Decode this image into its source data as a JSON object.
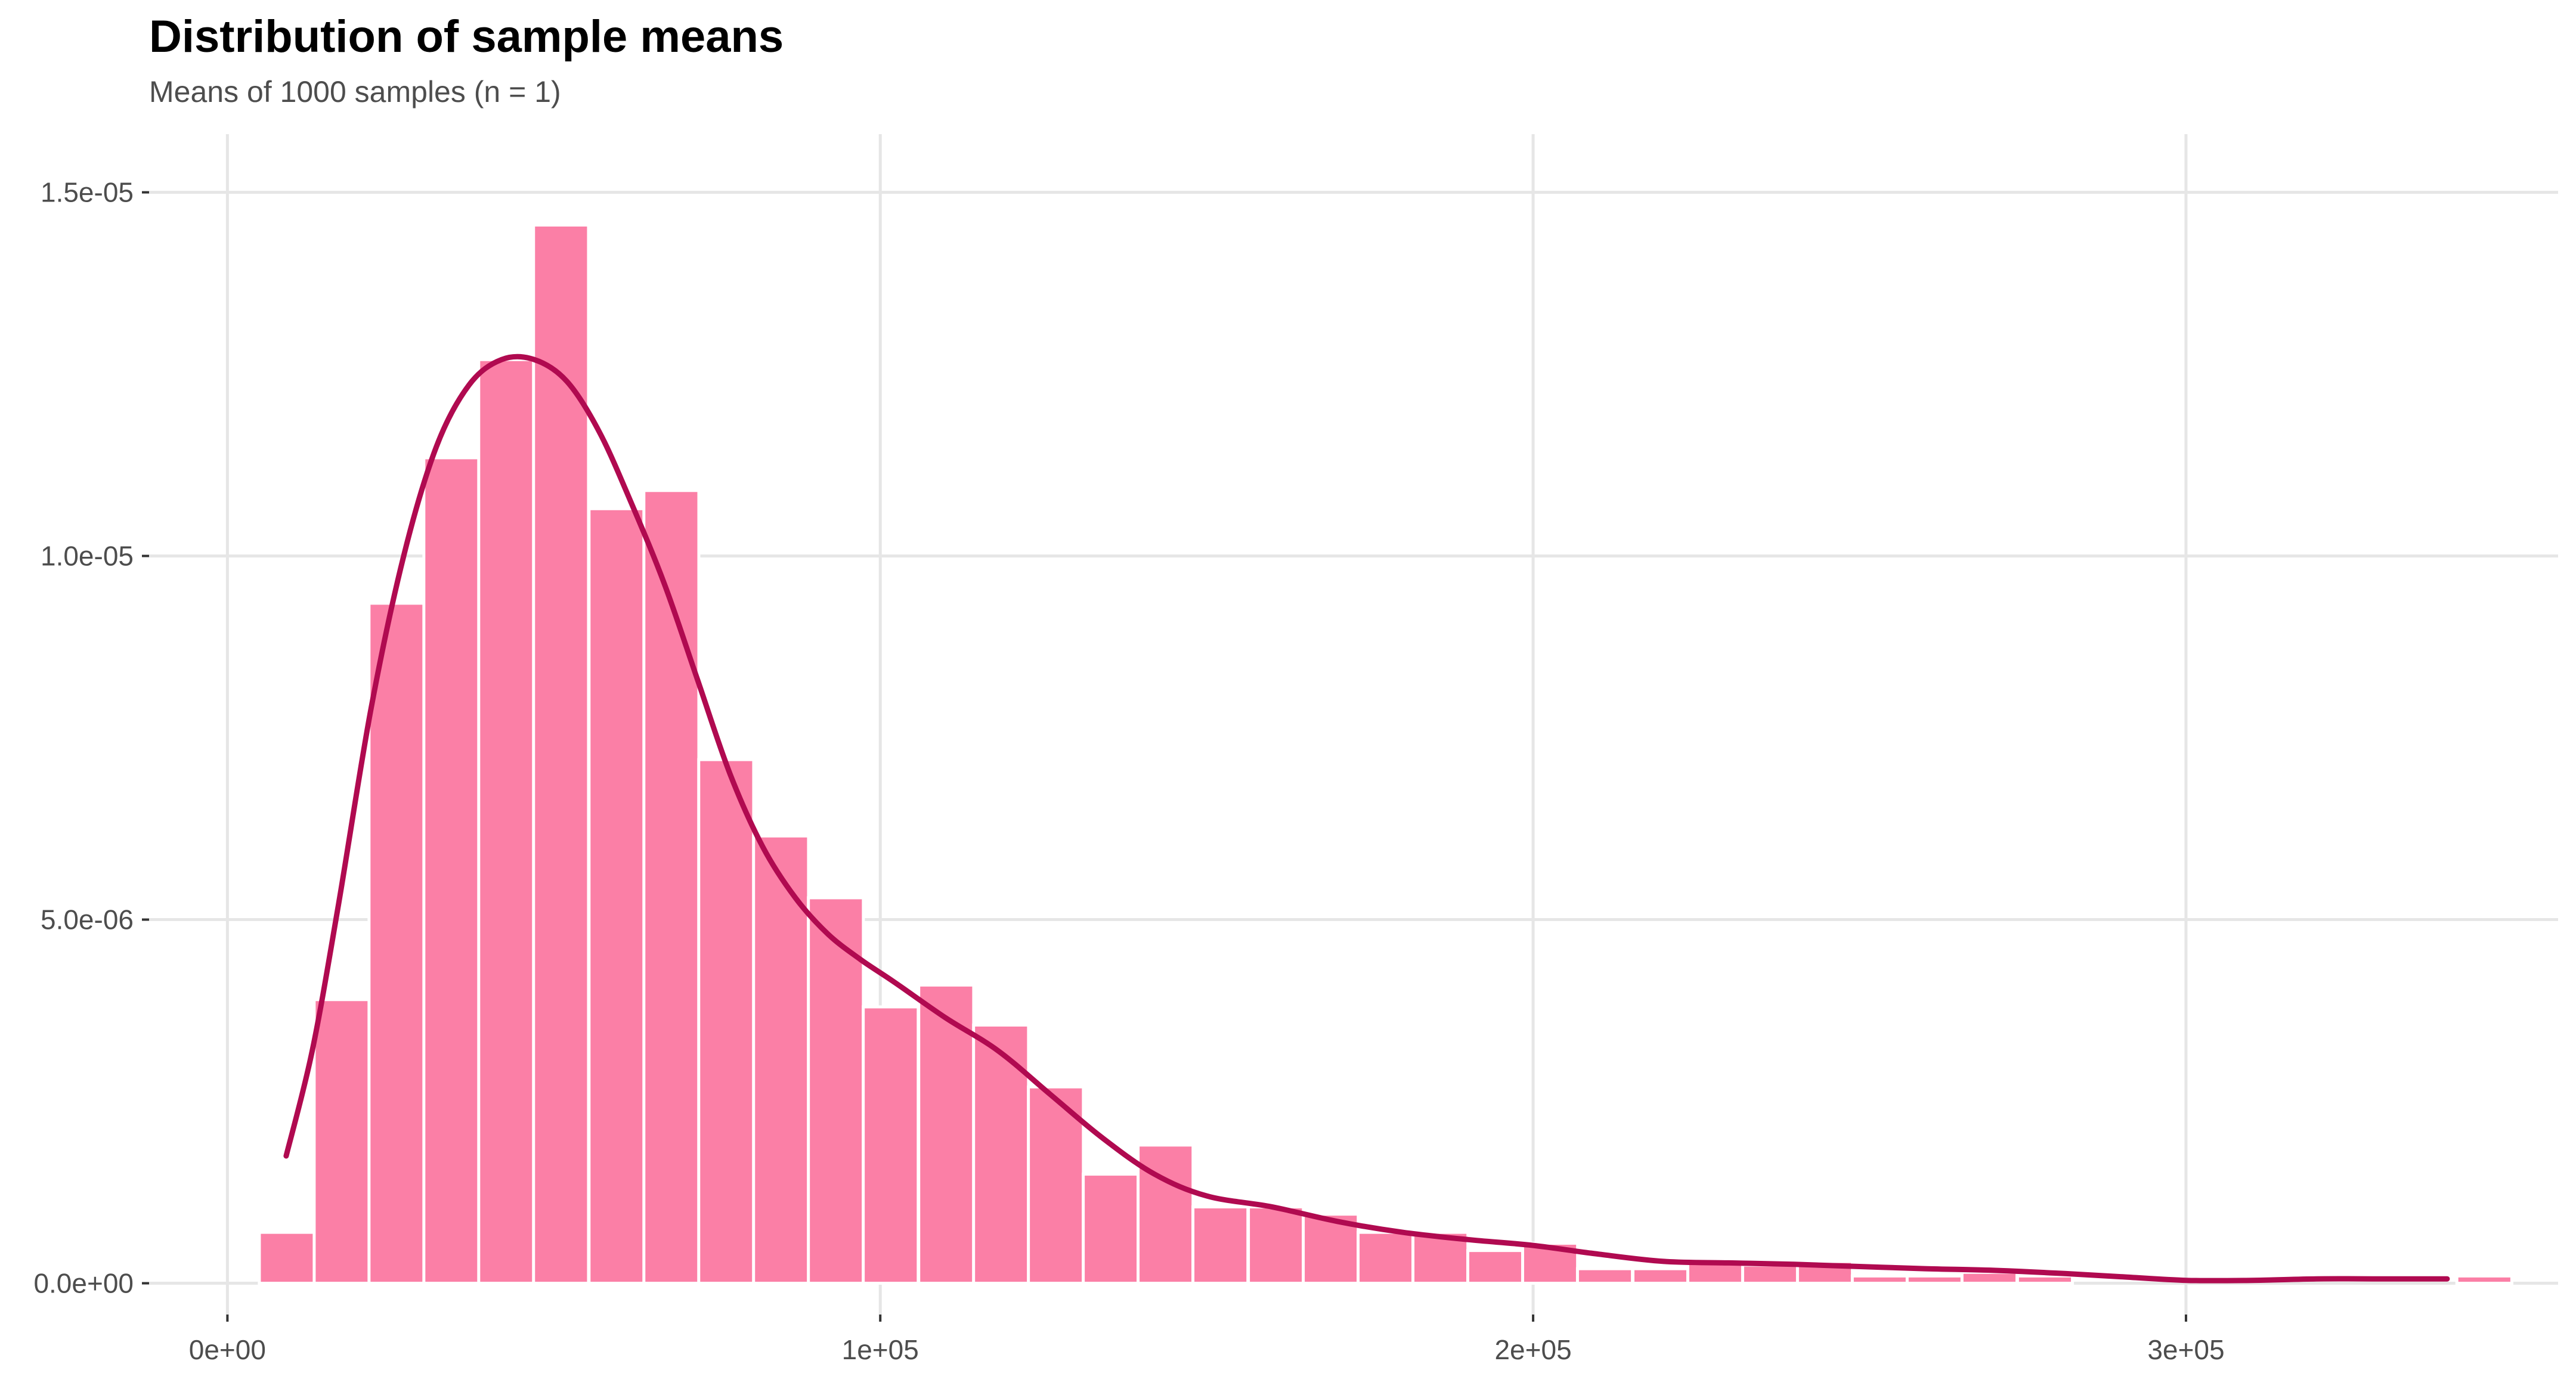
{
  "chart_data": {
    "type": "bar",
    "title": "Distribution of sample means",
    "subtitle": "Means of 1000 samples (n = 1)",
    "xlabel": "",
    "ylabel": "",
    "xlim": [
      -12000,
      357000
    ],
    "ylim": [
      -4.3e-07,
      1.58e-05
    ],
    "grid": true,
    "x_ticks": [
      {
        "value": 0,
        "label": "0e+00"
      },
      {
        "value": 100000,
        "label": "1e+05"
      },
      {
        "value": 200000,
        "label": "2e+05"
      },
      {
        "value": 300000,
        "label": "3e+05"
      }
    ],
    "y_ticks": [
      {
        "value": 0,
        "label": "0.0e+00"
      },
      {
        "value": 5e-06,
        "label": "5.0e-06"
      },
      {
        "value": 1e-05,
        "label": "1.0e-05"
      },
      {
        "value": 1.5e-05,
        "label": "1.5e-05"
      }
    ],
    "bin_width": 8420,
    "bin_centers": [
      9100,
      17500,
      25900,
      34300,
      42700,
      51100,
      59600,
      68000,
      76400,
      84800,
      93200,
      101600,
      110100,
      118500,
      126900,
      135300,
      143700,
      152100,
      160600,
      169000,
      177400,
      185800,
      194200,
      202600,
      211000,
      219500,
      227900,
      236300,
      244700,
      253100,
      261500,
      269900,
      278400,
      286800,
      295200,
      303600,
      312000,
      320400,
      328900,
      337300,
      345700
    ],
    "values": [
      7e-07,
      3.9e-06,
      9.35e-06,
      1.135e-05,
      1.27e-05,
      1.455e-05,
      1.065e-05,
      1.09e-05,
      7.2e-06,
      6.15e-06,
      5.3e-06,
      3.8e-06,
      4.1e-06,
      3.55e-06,
      2.7e-06,
      1.5e-06,
      1.9e-06,
      1.05e-06,
      1.05e-06,
      9.5e-07,
      7e-07,
      7e-07,
      4.5e-07,
      5.5e-07,
      2e-07,
      2e-07,
      3e-07,
      2.5e-07,
      3e-07,
      1e-07,
      1e-07,
      1.5e-07,
      1e-07,
      0,
      0,
      0,
      0,
      0,
      0,
      0,
      1e-07
    ],
    "bar_color": "#fb7fa6",
    "density": {
      "x": [
        9000,
        13000,
        17000,
        22000,
        27000,
        32000,
        37000,
        42000,
        47000,
        52000,
        57000,
        62000,
        67000,
        72000,
        77000,
        82000,
        87000,
        92000,
        97000,
        102000,
        110000,
        118000,
        126000,
        134000,
        142000,
        150000,
        160000,
        170000,
        180000,
        190000,
        200000,
        210000,
        220000,
        230000,
        240000,
        250000,
        260000,
        270000,
        280000,
        290000,
        300000,
        310000,
        320000,
        330000,
        340000
      ],
      "y": [
        1.75e-06,
        3.2e-06,
        5.2e-06,
        7.9e-06,
        1e-05,
        1.15e-05,
        1.235e-05,
        1.27e-05,
        1.27e-05,
        1.24e-05,
        1.17e-05,
        1.07e-05,
        9.6e-06,
        8.3e-06,
        7e-06,
        6e-06,
        5.3e-06,
        4.8e-06,
        4.45e-06,
        4.15e-06,
        3.65e-06,
        3.2e-06,
        2.6e-06,
        2e-06,
        1.5e-06,
        1.2e-06,
        1.05e-06,
        8.5e-07,
        7e-07,
        6e-07,
        5.2e-07,
        4e-07,
        3e-07,
        2.8e-07,
        2.6e-07,
        2.3e-07,
        2e-07,
        1.8e-07,
        1.4e-07,
        9e-08,
        4e-08,
        4e-08,
        6e-08,
        6e-08,
        6e-08
      ],
      "color": "#b00a50"
    }
  }
}
